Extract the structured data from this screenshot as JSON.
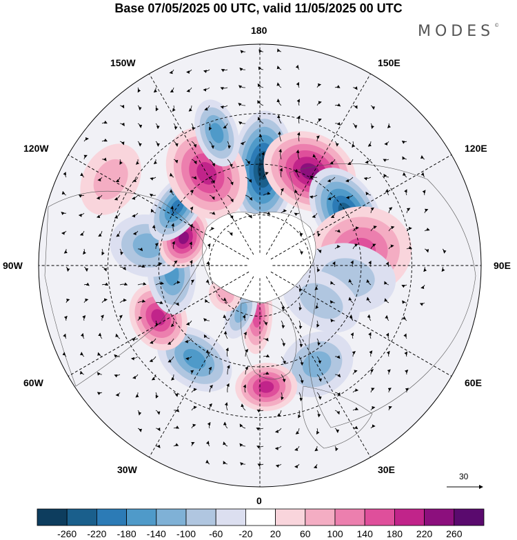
{
  "title": "Base 07/05/2025 00 UTC, valid 11/05/2025 00 UTC",
  "brand": "MODES",
  "brand_mark": "©",
  "longitude_labels": {
    "lon_180": "180",
    "lon_150W": "150W",
    "lon_150E": "150E",
    "lon_120W": "120W",
    "lon_120E": "120E",
    "lon_90W": "90W",
    "lon_90E": "90E",
    "lon_60W": "60W",
    "lon_60E": "60E",
    "lon_30W": "30W",
    "lon_30E": "30E",
    "lon_0": "0"
  },
  "vector_scale_label": "30",
  "colorbar": {
    "ticks": [
      "-260",
      "-220",
      "-180",
      "-140",
      "-100",
      "-60",
      "-20",
      "20",
      "60",
      "100",
      "140",
      "180",
      "220",
      "260"
    ],
    "colors": [
      "#0d3d5e",
      "#1a5f8c",
      "#2c7bb6",
      "#4f9ac9",
      "#7fb1d6",
      "#b0c6e0",
      "#dcdff0",
      "#ffffff",
      "#f9d5dc",
      "#f4adc3",
      "#ec7fae",
      "#df4f9b",
      "#c1248a",
      "#8c0f7d",
      "#5a0a6e"
    ]
  },
  "anomaly_centers": [
    {
      "lon": 178,
      "lat": 52,
      "value": -260,
      "rx": 45,
      "ry": 85
    },
    {
      "lon": 152,
      "lat": 48,
      "value": 220,
      "rx": 70,
      "ry": 55
    },
    {
      "lon": 122,
      "lat": 50,
      "value": -220,
      "rx": 70,
      "ry": 45
    },
    {
      "lon": 98,
      "lat": 50,
      "value": 140,
      "rx": 65,
      "ry": 75
    },
    {
      "lon": 82,
      "lat": 55,
      "value": -60,
      "rx": 50,
      "ry": 70
    },
    {
      "lon": 60,
      "lat": 62,
      "value": -60,
      "rx": 40,
      "ry": 60
    },
    {
      "lon": 30,
      "lat": 45,
      "value": -100,
      "rx": 55,
      "ry": 45
    },
    {
      "lon": 3,
      "lat": 42,
      "value": 180,
      "rx": 45,
      "ry": 35
    },
    {
      "lon": -3,
      "lat": 70,
      "value": 140,
      "rx": 22,
      "ry": 55
    },
    {
      "lon": -22,
      "lat": 70,
      "value": -100,
      "rx": 20,
      "ry": 40
    },
    {
      "lon": -35,
      "lat": 45,
      "value": -140,
      "rx": 60,
      "ry": 40
    },
    {
      "lon": -63,
      "lat": 45,
      "value": 180,
      "rx": 50,
      "ry": 40
    },
    {
      "lon": -50,
      "lat": 72,
      "value": 60,
      "rx": 25,
      "ry": 22
    },
    {
      "lon": -85,
      "lat": 55,
      "value": -140,
      "rx": 60,
      "ry": 35
    },
    {
      "lon": -100,
      "lat": 45,
      "value": -100,
      "rx": 45,
      "ry": 55
    },
    {
      "lon": -110,
      "lat": 58,
      "value": 220,
      "rx": 45,
      "ry": 35
    },
    {
      "lon": -125,
      "lat": 50,
      "value": -180,
      "rx": 55,
      "ry": 32
    },
    {
      "lon": -150,
      "lat": 48,
      "value": 180,
      "rx": 55,
      "ry": 70
    },
    {
      "lon": -162,
      "lat": 35,
      "value": -140,
      "rx": 30,
      "ry": 50
    },
    {
      "lon": -120,
      "lat": 22,
      "value": 60,
      "rx": 55,
      "ry": 40
    }
  ]
}
